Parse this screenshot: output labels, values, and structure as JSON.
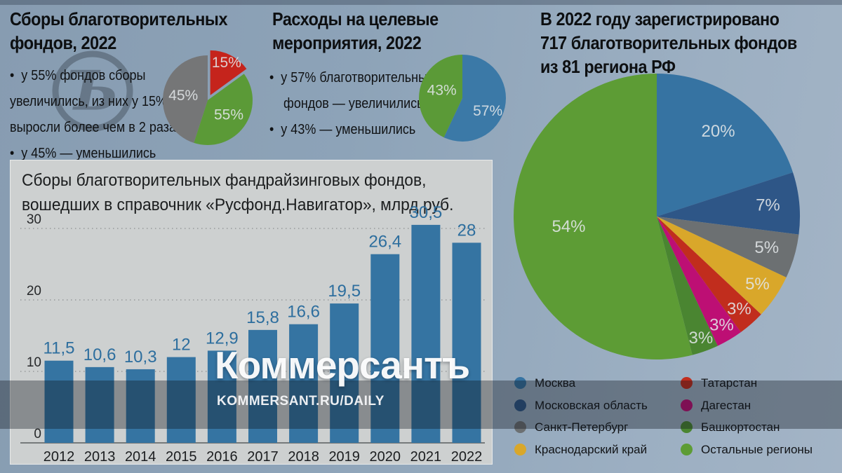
{
  "sections": {
    "collections": {
      "title": "Сборы благотворительных\nфондов, 2022",
      "notes": "•  у 55% фондов сборы\nувеличились, из них у 15% —\nвыросли более чем в 2 раза\n•  у 45% — уменьшились"
    },
    "expenses": {
      "title": "Расходы на целевые\nмероприятия, 2022",
      "notes": "•  у 57% благотворительных\n    фондов — увеличились\n•  у 43% — уменьшились"
    },
    "regions": {
      "title": "В 2022 году зарегистрировано\n717 благотворительных фондов\nиз 81 региона РФ"
    },
    "fundraising": {
      "title": "Сборы благотворительных фандрайзинговых фондов,\nвошедших в справочник «Русфонд.Навигатор», млрд руб."
    }
  },
  "watermark": {
    "logo": "Коммерсантъ",
    "url": "KOMMERSANT.RU/DAILY",
    "emblem_glyph": "Ъ"
  },
  "legend": {
    "position": "bottom-right",
    "items": [
      {
        "label": "Москва",
        "color": "#3673a2"
      },
      {
        "label": "Московская область",
        "color": "#2e5687"
      },
      {
        "label": "Санкт-Петербург",
        "color": "#6c7072"
      },
      {
        "label": "Краснодарский край",
        "color": "#d9a72a"
      },
      {
        "label": "Татарстан",
        "color": "#c12d1d"
      },
      {
        "label": "Дагестан",
        "color": "#bd0f74"
      },
      {
        "label": "Башкортостан",
        "color": "#4a8531"
      },
      {
        "label": "Остальные регионы",
        "color": "#5d9c35"
      }
    ]
  },
  "chart_data": [
    {
      "id": "pie-collections",
      "type": "pie",
      "title": "Сборы благотворительных фондов, 2022",
      "slices": [
        {
          "name": "выросли более чем в 2 раза",
          "label": "15%",
          "arc_pct": 15,
          "color": "#c5241c",
          "explode": 8,
          "label_r": 0.8
        },
        {
          "name": "сборы увеличились (всего 55%)",
          "label": "55%",
          "arc_pct": 40,
          "color": "#5b9a37",
          "label_r": 0.58
        },
        {
          "name": "уменьшились",
          "label": "45%",
          "arc_pct": 45,
          "color": "#757677",
          "label_r": 0.55
        }
      ]
    },
    {
      "id": "pie-expenses",
      "type": "pie",
      "title": "Расходы на целевые мероприятия, 2022",
      "slices": [
        {
          "name": "увеличились",
          "label": "57%",
          "arc_pct": 57,
          "color": "#3b79a7",
          "label_r": 0.66,
          "label_angle": 118
        },
        {
          "name": "уменьшились",
          "label": "43%",
          "arc_pct": 43,
          "color": "#5b9a37",
          "label_r": 0.5,
          "label_angle": 289
        }
      ]
    },
    {
      "id": "pie-regions",
      "type": "pie",
      "title": "В 2022 году зарегистрировано 717 благотворительных фондов из 81 региона РФ",
      "slices": [
        {
          "name": "Москва",
          "label": "20%",
          "arc_pct": 20,
          "color": "#3673a2",
          "label_r": 0.73
        },
        {
          "name": "Московская область",
          "label": "7%",
          "arc_pct": 7,
          "color": "#2e5687",
          "label_r": 0.78
        },
        {
          "name": "Санкт-Петербург",
          "label": "5%",
          "arc_pct": 5,
          "color": "#6c7072",
          "label_r": 0.8
        },
        {
          "name": "Краснодарский край",
          "label": "5%",
          "arc_pct": 5,
          "color": "#d9a72a",
          "label_r": 0.85
        },
        {
          "name": "Татарстан",
          "label": "3%",
          "arc_pct": 3,
          "color": "#c12d1d",
          "label_r": 0.87
        },
        {
          "name": "Дагестан",
          "label": "3%",
          "arc_pct": 3,
          "color": "#bd0f74",
          "label_r": 0.89
        },
        {
          "name": "Башкортостан",
          "label": "3%",
          "arc_pct": 3,
          "color": "#4a8531",
          "label_r": 0.91
        },
        {
          "name": "Остальные регионы",
          "label": "54%",
          "arc_pct": 54,
          "color": "#5d9c35",
          "label_r": 0.62
        }
      ]
    },
    {
      "id": "bar-fundraising",
      "type": "bar",
      "title": "Сборы благотворительных фандрайзинговых фондов, вошедших в справочник «Русфонд.Навигатор», млрд руб.",
      "ylabel": "млрд руб.",
      "categories": [
        "2012",
        "2013",
        "2014",
        "2015",
        "2016",
        "2017",
        "2018",
        "2019",
        "2020",
        "2021",
        "2022"
      ],
      "values": [
        11.5,
        10.6,
        10.3,
        12,
        12.9,
        15.8,
        16.6,
        19.5,
        26.4,
        30.5,
        28
      ],
      "value_labels": [
        "11,5",
        "10,6",
        "10,3",
        "12",
        "12,9",
        "15,8",
        "16,6",
        "19,5",
        "26,4",
        "30,5",
        "28"
      ],
      "yticks": [
        0,
        10,
        20,
        30
      ],
      "ylim": [
        0,
        32
      ],
      "grid": "dotted",
      "bar_color": "#3574a2",
      "value_label_color": "#2d6e9e",
      "axis_color": "#5a5d5f",
      "tick_label_color": "#26282a"
    }
  ]
}
